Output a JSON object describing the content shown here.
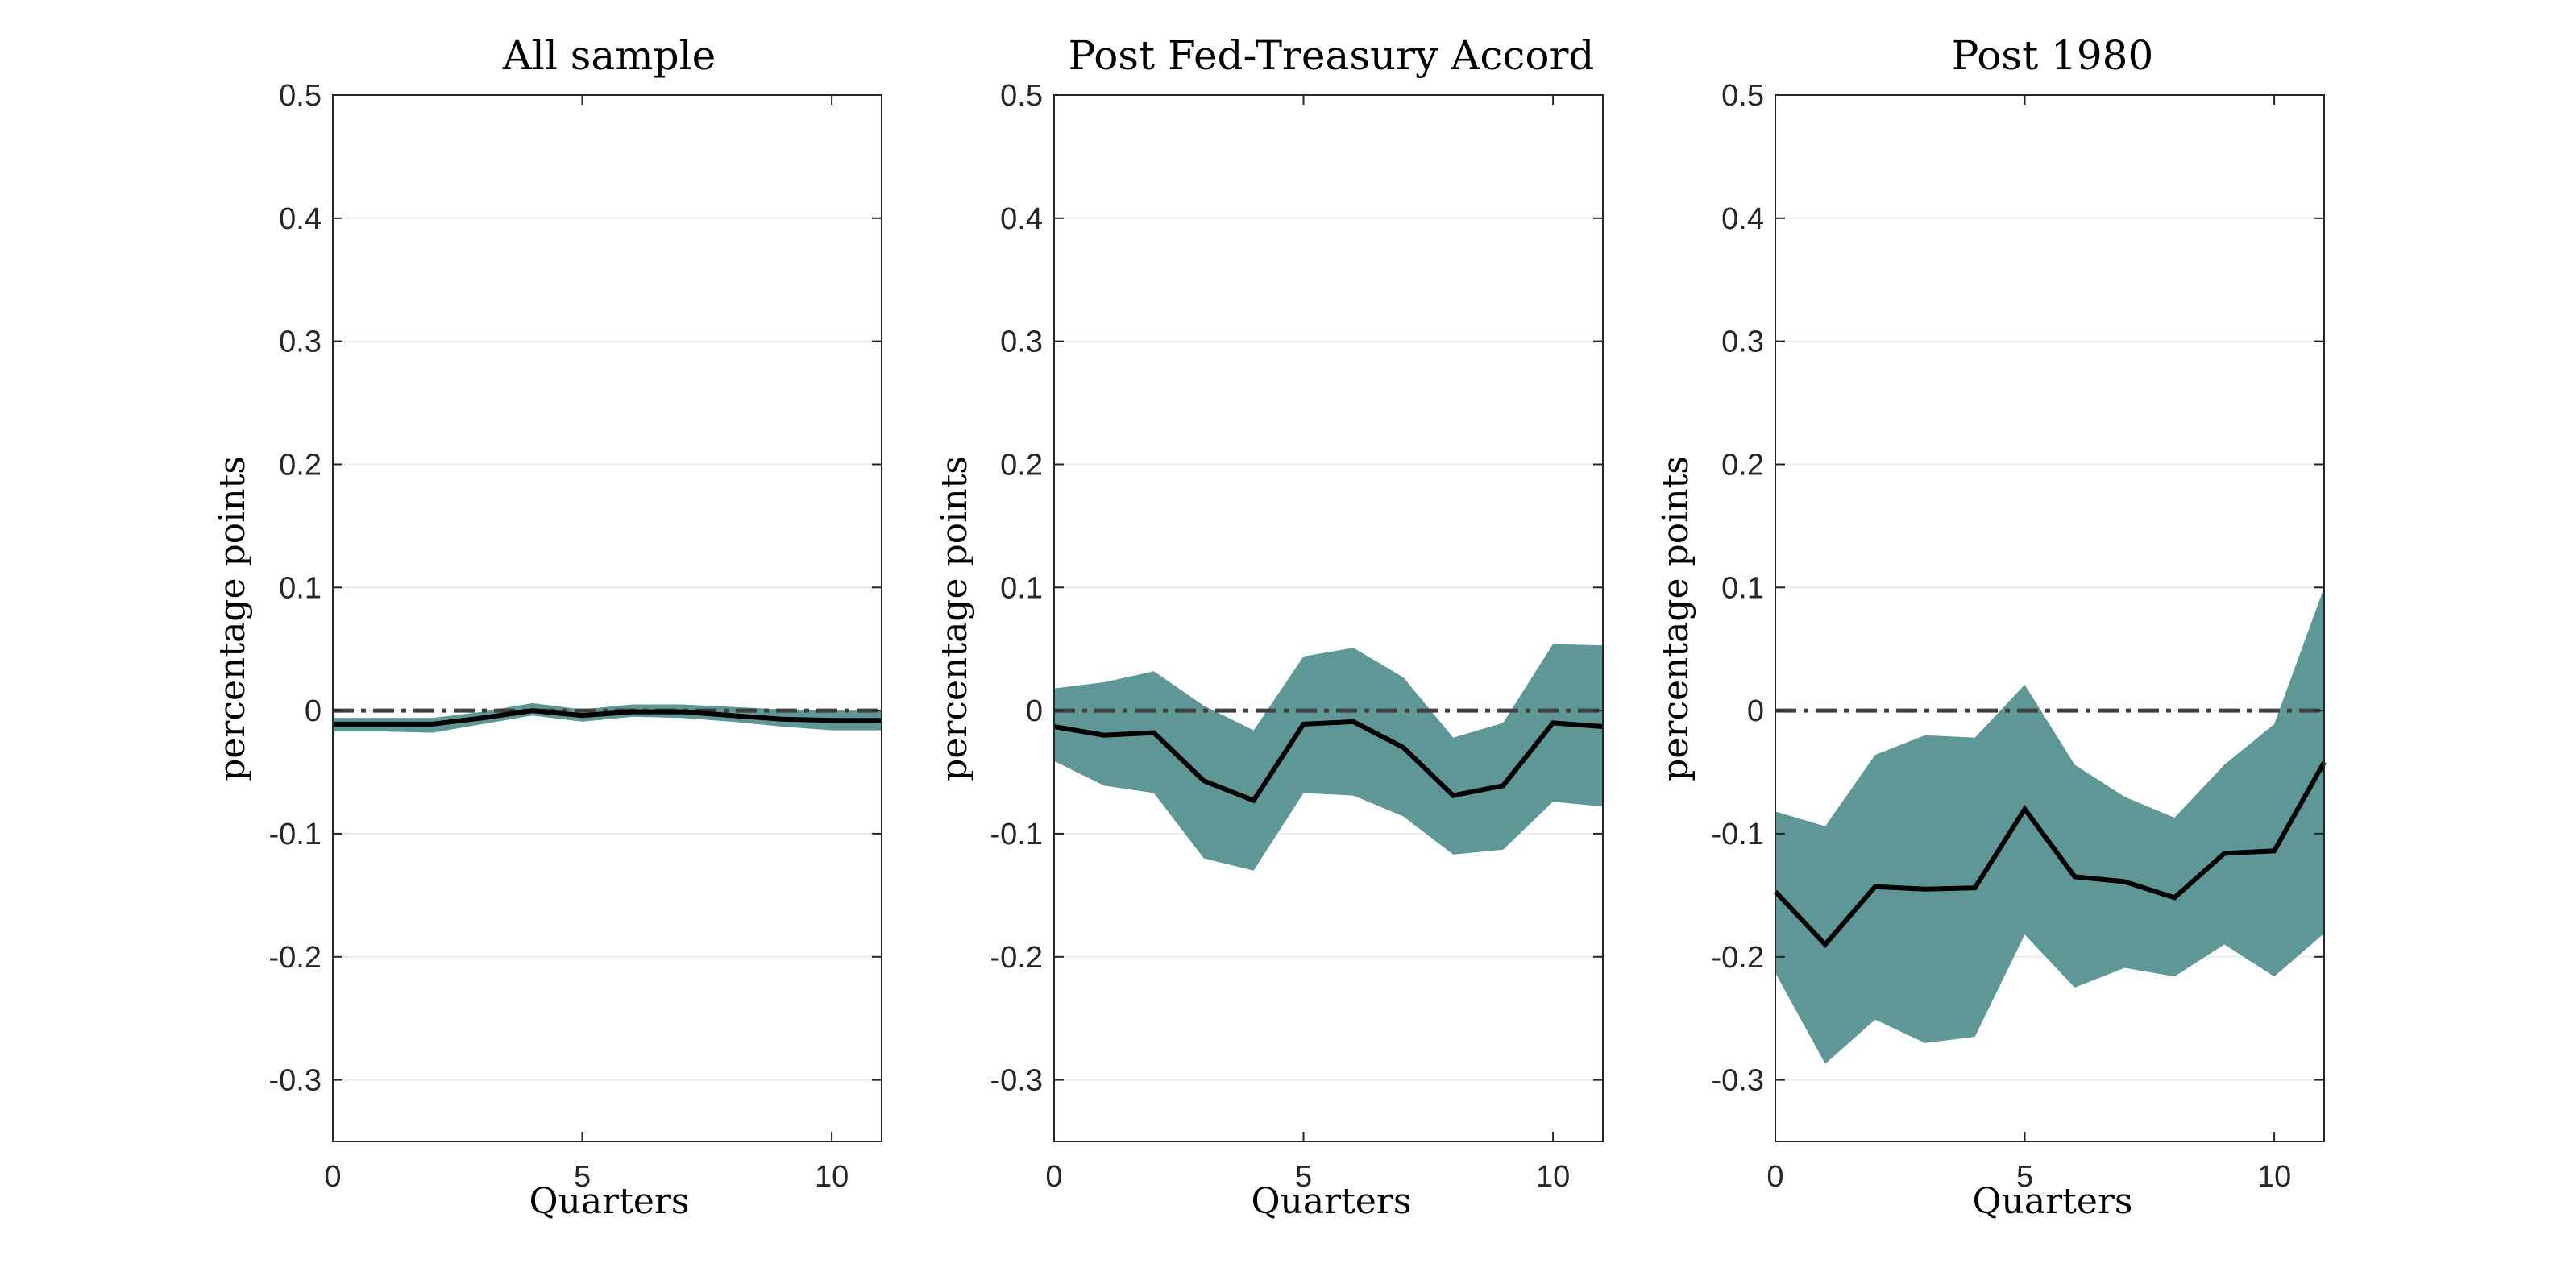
{
  "figure": {
    "band_color": "#5f9797",
    "line_color": "#000000",
    "zero_line_color": "#404040"
  },
  "chart_data": [
    {
      "type": "line",
      "title": "All sample",
      "xlabel": "Quarters",
      "ylabel": "percentage points",
      "xlim": [
        0,
        11
      ],
      "ylim": [
        -0.35,
        0.5
      ],
      "xticks": [
        0,
        5,
        10
      ],
      "xtick_labels": [
        "0",
        "5",
        "10"
      ],
      "yticks": [
        -0.3,
        -0.2,
        -0.1,
        0,
        0.1,
        0.2,
        0.3,
        0.4,
        0.5
      ],
      "ytick_labels": [
        "-0.3",
        "-0.2",
        "-0.1",
        "0",
        "0.1",
        "0.2",
        "0.3",
        "0.4",
        "0.5"
      ],
      "grid": "horizontal",
      "x": [
        0,
        1,
        2,
        3,
        4,
        5,
        6,
        7,
        8,
        9,
        10,
        11
      ],
      "y": [
        -0.011,
        -0.011,
        -0.011,
        -0.006,
        0.0,
        -0.004,
        -0.001,
        -0.001,
        -0.004,
        -0.007,
        -0.008,
        -0.008
      ],
      "lower": [
        -0.017,
        -0.017,
        -0.018,
        -0.011,
        -0.004,
        -0.009,
        -0.005,
        -0.006,
        -0.009,
        -0.013,
        -0.016,
        -0.016
      ],
      "upper": [
        -0.006,
        -0.006,
        -0.006,
        -0.001,
        0.006,
        0.001,
        0.005,
        0.005,
        0.003,
        0.001,
        0.0,
        0.0
      ],
      "reference_line": 0
    },
    {
      "type": "line",
      "title": "Post Fed-Treasury Accord",
      "xlabel": "Quarters",
      "ylabel": "percentage points",
      "xlim": [
        0,
        11
      ],
      "ylim": [
        -0.35,
        0.5
      ],
      "xticks": [
        0,
        5,
        10
      ],
      "xtick_labels": [
        "0",
        "5",
        "10"
      ],
      "yticks": [
        -0.3,
        -0.2,
        -0.1,
        0,
        0.1,
        0.2,
        0.3,
        0.4,
        0.5
      ],
      "ytick_labels": [
        "-0.3",
        "-0.2",
        "-0.1",
        "0",
        "0.1",
        "0.2",
        "0.3",
        "0.4",
        "0.5"
      ],
      "grid": "horizontal",
      "x": [
        0,
        1,
        2,
        3,
        4,
        5,
        6,
        7,
        8,
        9,
        10,
        11
      ],
      "y": [
        -0.013,
        -0.02,
        -0.018,
        -0.057,
        -0.073,
        -0.011,
        -0.009,
        -0.03,
        -0.069,
        -0.061,
        -0.01,
        -0.013
      ],
      "lower": [
        -0.041,
        -0.061,
        -0.067,
        -0.12,
        -0.13,
        -0.067,
        -0.069,
        -0.086,
        -0.117,
        -0.113,
        -0.074,
        -0.078
      ],
      "upper": [
        0.018,
        0.023,
        0.032,
        0.004,
        -0.016,
        0.044,
        0.051,
        0.027,
        -0.022,
        -0.01,
        0.054,
        0.053
      ],
      "reference_line": 0
    },
    {
      "type": "line",
      "title": "Post 1980",
      "xlabel": "Quarters",
      "ylabel": "percentage points",
      "xlim": [
        0,
        11
      ],
      "ylim": [
        -0.35,
        0.5
      ],
      "xticks": [
        0,
        5,
        10
      ],
      "xtick_labels": [
        "0",
        "5",
        "10"
      ],
      "yticks": [
        -0.3,
        -0.2,
        -0.1,
        0,
        0.1,
        0.2,
        0.3,
        0.4,
        0.5
      ],
      "ytick_labels": [
        "-0.3",
        "-0.2",
        "-0.1",
        "0",
        "0.1",
        "0.2",
        "0.3",
        "0.4",
        "0.5"
      ],
      "grid": "horizontal",
      "x": [
        0,
        1,
        2,
        3,
        4,
        5,
        6,
        7,
        8,
        9,
        10,
        11
      ],
      "y": [
        -0.147,
        -0.19,
        -0.143,
        -0.145,
        -0.144,
        -0.08,
        -0.135,
        -0.139,
        -0.152,
        -0.116,
        -0.114,
        -0.042
      ],
      "lower": [
        -0.213,
        -0.287,
        -0.251,
        -0.27,
        -0.265,
        -0.182,
        -0.225,
        -0.209,
        -0.216,
        -0.19,
        -0.216,
        -0.181
      ],
      "upper": [
        -0.082,
        -0.094,
        -0.036,
        -0.02,
        -0.022,
        0.021,
        -0.044,
        -0.07,
        -0.087,
        -0.044,
        -0.011,
        0.1
      ],
      "reference_line": 0
    }
  ]
}
